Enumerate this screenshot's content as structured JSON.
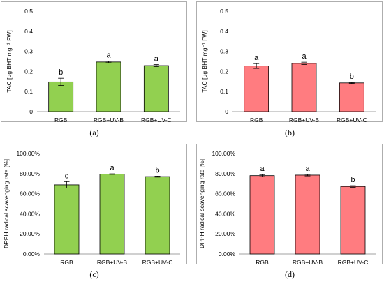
{
  "chart_data": [
    {
      "id": "a",
      "type": "bar",
      "caption": "(a)",
      "categories": [
        "RGB",
        "RGB+UV-B",
        "RGB+UV-C"
      ],
      "values": [
        0.148,
        0.247,
        0.229
      ],
      "errors": [
        0.018,
        0.004,
        0.005
      ],
      "letters": [
        "b",
        "a",
        "a"
      ],
      "ylabel": "TAC [μg BHT mg⁻¹ FW]",
      "ylim": [
        0,
        0.5
      ],
      "yticks": [
        0,
        0.1,
        0.2,
        0.3,
        0.4,
        0.5
      ],
      "yticklabels": [
        "0",
        "0.1",
        "0.2",
        "0.3",
        "0.4",
        "0.5"
      ],
      "bar_color": "#92d050",
      "grid": false
    },
    {
      "id": "b",
      "type": "bar",
      "caption": "(b)",
      "categories": [
        "RGB",
        "RGB+UV-B",
        "RGB+UV-C"
      ],
      "values": [
        0.227,
        0.24,
        0.143
      ],
      "errors": [
        0.012,
        0.006,
        0.003
      ],
      "letters": [
        "a",
        "a",
        "b"
      ],
      "ylabel": "TAC [μg BHT mg⁻¹ FW]",
      "ylim": [
        0,
        0.5
      ],
      "yticks": [
        0,
        0.1,
        0.2,
        0.3,
        0.4,
        0.5
      ],
      "yticklabels": [
        "0",
        "0.1",
        "0.2",
        "0.3",
        "0.4",
        "0.5"
      ],
      "bar_color": "#ff7c80",
      "grid": false
    },
    {
      "id": "c",
      "type": "bar",
      "caption": "(c)",
      "categories": [
        "RGB",
        "RGB+UV-B",
        "RGB+UV-C"
      ],
      "values": [
        68.8,
        79.5,
        77.0
      ],
      "errors": [
        3.2,
        0.3,
        0.5
      ],
      "letters": [
        "c",
        "a",
        "b"
      ],
      "ylabel": "DPPH radical scavenging rate [%]",
      "ylim": [
        0,
        100
      ],
      "yticks": [
        0,
        20,
        40,
        60,
        80,
        100
      ],
      "yticklabels": [
        "0.00%",
        "20.00%",
        "40.00%",
        "60.00%",
        "80.00%",
        "100.00%"
      ],
      "bar_color": "#92d050",
      "grid": false
    },
    {
      "id": "d",
      "type": "bar",
      "caption": "(d)",
      "categories": [
        "RGB",
        "RGB+UV-B",
        "RGB+UV-C"
      ],
      "values": [
        78.0,
        78.5,
        67.2
      ],
      "errors": [
        1.0,
        0.8,
        0.8
      ],
      "letters": [
        "a",
        "a",
        "b"
      ],
      "ylabel": "DPPH radical scavenging rate [%]",
      "ylim": [
        0,
        100
      ],
      "yticks": [
        0,
        20,
        40,
        60,
        80,
        100
      ],
      "yticklabels": [
        "0.00%",
        "20.00%",
        "40.00%",
        "60.00%",
        "80.00%",
        "100.00%"
      ],
      "bar_color": "#ff7c80",
      "grid": false
    }
  ]
}
